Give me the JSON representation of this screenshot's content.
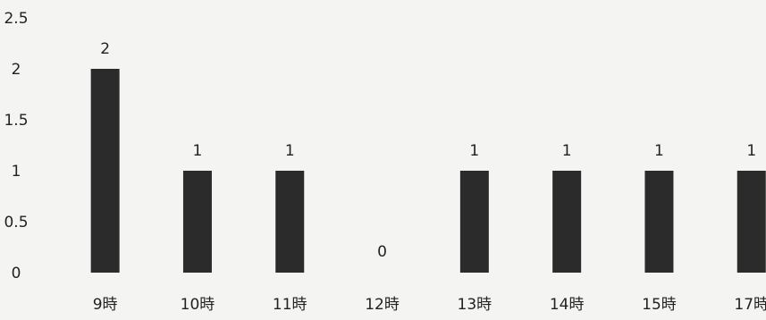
{
  "chart_data": {
    "type": "bar",
    "categories": [
      "9時",
      "10時",
      "11時",
      "12時",
      "13時",
      "14時",
      "15時",
      "17時"
    ],
    "values": [
      2,
      1,
      1,
      0,
      1,
      1,
      1,
      1
    ],
    "data_labels": [
      "2",
      "1",
      "1",
      "0",
      "1",
      "1",
      "1",
      "1"
    ],
    "yticks": [
      0,
      0.5,
      1,
      1.5,
      2,
      2.5
    ],
    "ytick_labels": [
      "0",
      "0.5",
      "1",
      "1.5",
      "2",
      "2.5"
    ],
    "ylim": [
      0,
      2.5
    ],
    "grid": false,
    "legend": "none",
    "colors": {
      "bar": "#2b2b2b",
      "text": "#222222",
      "background": "#f4f4f2"
    }
  }
}
